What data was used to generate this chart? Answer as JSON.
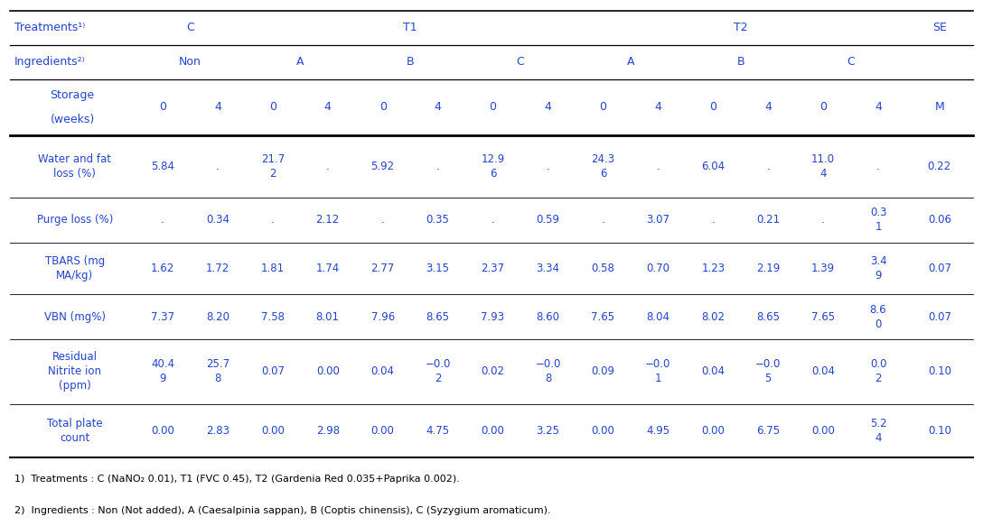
{
  "rows": [
    {
      "label": "Water and fat\nloss (%)",
      "values": [
        "5.84",
        ".",
        "21.7\n2",
        ".",
        "5.92",
        ".",
        "12.9\n6",
        ".",
        "24.3\n6",
        ".",
        "6.04",
        ".",
        "11.0\n4",
        ".",
        "0.22"
      ]
    },
    {
      "label": "Purge loss (%)",
      "values": [
        ".",
        "0.34",
        ".",
        "2.12",
        ".",
        "0.35",
        ".",
        "0.59",
        ".",
        "3.07",
        ".",
        "0.21",
        ".",
        "0.3\n1",
        "0.06"
      ]
    },
    {
      "label": "TBARS (mg\nMA/kg)",
      "values": [
        "1.62",
        "1.72",
        "1.81",
        "1.74",
        "2.77",
        "3.15",
        "2.37",
        "3.34",
        "0.58",
        "0.70",
        "1.23",
        "2.19",
        "1.39",
        "3.4\n9",
        "0.07"
      ]
    },
    {
      "label": "VBN (mg%)",
      "values": [
        "7.37",
        "8.20",
        "7.58",
        "8.01",
        "7.96",
        "8.65",
        "7.93",
        "8.60",
        "7.65",
        "8.04",
        "8.02",
        "8.65",
        "7.65",
        "8.6\n0",
        "0.07"
      ]
    },
    {
      "label": "Residual\nNitrite ion\n(ppm)",
      "values": [
        "40.4\n9",
        "25.7\n8",
        "0.07",
        "0.00",
        "0.04",
        "−0.0\n2",
        "0.02",
        "−0.0\n8",
        "0.09",
        "−0.0\n1",
        "0.04",
        "−0.0\n5",
        "0.04",
        "0.0\n2",
        "0.10"
      ]
    },
    {
      "label": "Total plate\ncount",
      "values": [
        "0.00",
        "2.83",
        "0.00",
        "2.98",
        "0.00",
        "4.75",
        "0.00",
        "3.25",
        "0.00",
        "4.95",
        "0.00",
        "6.75",
        "0.00",
        "5.2\n4",
        "0.10"
      ]
    }
  ],
  "footnote1": "1)  Treatments : C (NaNO₂ 0.01), T1 (FVC 0.45), T2 (Gardenia Red 0.035+Paprika 0.002).",
  "footnote2": "2)  Ingredients : Non (Not added), A (Caesalpinia sappan), B (Coptis chinensis), C (Syzygium aromaticum).",
  "text_color": "#2244cc",
  "line_color": "#000000",
  "bg_color": "#ffffff",
  "font_size": 8.5,
  "header_font_size": 9.0,
  "footnote_font_size": 8.0
}
